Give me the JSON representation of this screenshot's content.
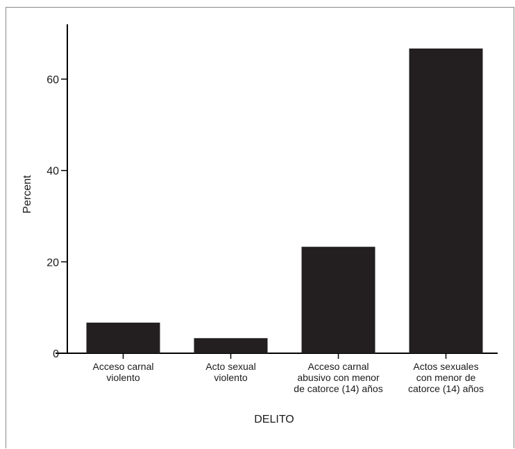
{
  "chart_data": {
    "type": "bar",
    "categories": [
      [
        "Acceso carnal",
        "violento"
      ],
      [
        "Acto sexual",
        "violento"
      ],
      [
        "Acceso carnal",
        "abusivo con menor",
        "de catorce (14) años"
      ],
      [
        "Actos sexuales",
        "con menor de",
        "catorce (14) años"
      ]
    ],
    "values": [
      6.7,
      3.3,
      23.3,
      66.7
    ],
    "xlabel": "DELITO",
    "ylabel": "Percent",
    "ylim": [
      0,
      72
    ],
    "yticks": [
      0,
      20,
      40,
      60
    ],
    "grid": false,
    "colors": {
      "bar": "#231f20",
      "axis": "#000000"
    }
  }
}
